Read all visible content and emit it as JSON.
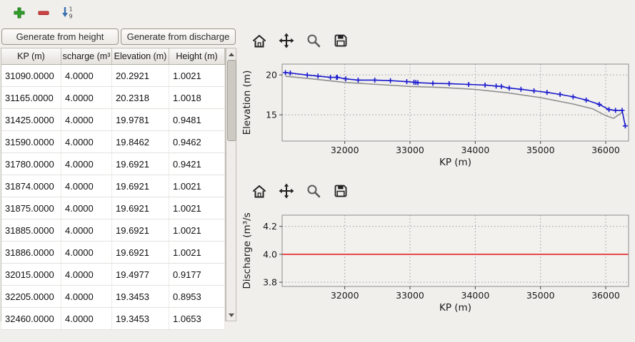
{
  "top_toolbar": {
    "sort_icon_top_digit": "1",
    "sort_icon_bottom_digit": "9"
  },
  "buttons": {
    "generate_from_height": "Generate from height",
    "generate_from_discharge": "Generate from discharge"
  },
  "table": {
    "headers": [
      "KP (m)",
      "scharge (m³",
      "Elevation (m)",
      "Height (m)"
    ],
    "rows": [
      [
        "31090.0000",
        "4.0000",
        "20.2921",
        "1.0021"
      ],
      [
        "31165.0000",
        "4.0000",
        "20.2318",
        "1.0018"
      ],
      [
        "31425.0000",
        "4.0000",
        "19.9781",
        "0.9481"
      ],
      [
        "31590.0000",
        "4.0000",
        "19.8462",
        "0.9462"
      ],
      [
        "31780.0000",
        "4.0000",
        "19.6921",
        "0.9421"
      ],
      [
        "31874.0000",
        "4.0000",
        "19.6921",
        "1.0021"
      ],
      [
        "31875.0000",
        "4.0000",
        "19.6921",
        "1.0021"
      ],
      [
        "31885.0000",
        "4.0000",
        "19.6921",
        "1.0021"
      ],
      [
        "31886.0000",
        "4.0000",
        "19.6921",
        "1.0021"
      ],
      [
        "32015.0000",
        "4.0000",
        "19.4977",
        "0.9177"
      ],
      [
        "32205.0000",
        "4.0000",
        "19.3453",
        "0.8953"
      ],
      [
        "32460.0000",
        "4.0000",
        "19.3453",
        "1.0653"
      ]
    ]
  },
  "plot_toolbar": {
    "icons": [
      "home",
      "pan",
      "zoom",
      "save"
    ]
  },
  "colors": {
    "window_bg": "#f1efec",
    "elevation_line": "#1a1acd",
    "bed_line": "#8f8f8f",
    "discharge_line": "#e42222"
  },
  "chart_data": [
    {
      "type": "line",
      "title": "",
      "xlabel": "KP (m)",
      "ylabel": "Elevation (m)",
      "xlim": [
        31040,
        36350
      ],
      "ylim": [
        11.7,
        21.35
      ],
      "xticks": [
        32000,
        33000,
        34000,
        35000,
        36000
      ],
      "xtick_labels": [
        "32000",
        "33000",
        "34000",
        "35000",
        "36000"
      ],
      "yticks": [
        15,
        20
      ],
      "ytick_labels": [
        "15",
        "20"
      ],
      "grid": true,
      "facecolor": "#f2f1ee",
      "series": [
        {
          "name": "bed-elevation",
          "color": "#8f8f8f",
          "marker": null,
          "x": [
            31090,
            31500,
            32000,
            32500,
            33000,
            33500,
            34000,
            34500,
            35000,
            35500,
            35800,
            36000,
            36120,
            36260
          ],
          "y": [
            19.82,
            19.5,
            19.05,
            18.8,
            18.55,
            18.42,
            18.18,
            17.75,
            17.15,
            16.35,
            15.75,
            14.9,
            14.55,
            15.35
          ]
        },
        {
          "name": "water-surface-elevation",
          "color": "#1a1acd",
          "marker": "+",
          "x": [
            31090,
            31165,
            31425,
            31590,
            31780,
            31874,
            31886,
            32015,
            32205,
            32460,
            32700,
            32950,
            33060,
            33090,
            33120,
            33350,
            33600,
            33900,
            34150,
            34320,
            34400,
            34520,
            34700,
            34900,
            35100,
            35300,
            35500,
            35700,
            35900,
            36050,
            36150,
            36250,
            36300
          ],
          "y": [
            20.29,
            20.23,
            19.98,
            19.85,
            19.69,
            19.69,
            19.69,
            19.5,
            19.35,
            19.35,
            19.28,
            19.15,
            19.08,
            19.05,
            19.02,
            18.95,
            18.9,
            18.8,
            18.72,
            18.6,
            18.55,
            18.35,
            18.2,
            18.0,
            17.8,
            17.55,
            17.25,
            16.85,
            16.3,
            15.65,
            15.55,
            15.55,
            13.6
          ]
        }
      ]
    },
    {
      "type": "line",
      "title": "",
      "xlabel": "KP (m)",
      "ylabel": "Discharge (m³/s",
      "xlim": [
        31040,
        36350
      ],
      "ylim": [
        3.77,
        4.28
      ],
      "xticks": [
        32000,
        33000,
        34000,
        35000,
        36000
      ],
      "xtick_labels": [
        "32000",
        "33000",
        "34000",
        "35000",
        "36000"
      ],
      "yticks": [
        3.8,
        4.0,
        4.2
      ],
      "ytick_labels": [
        "3.8",
        "4.0",
        "4.2"
      ],
      "grid": true,
      "facecolor": "#f2f1ee",
      "series": [
        {
          "name": "discharge",
          "color": "#e42222",
          "marker": null,
          "x": [
            31040,
            36350
          ],
          "y": [
            4.0,
            4.0
          ]
        }
      ]
    }
  ]
}
